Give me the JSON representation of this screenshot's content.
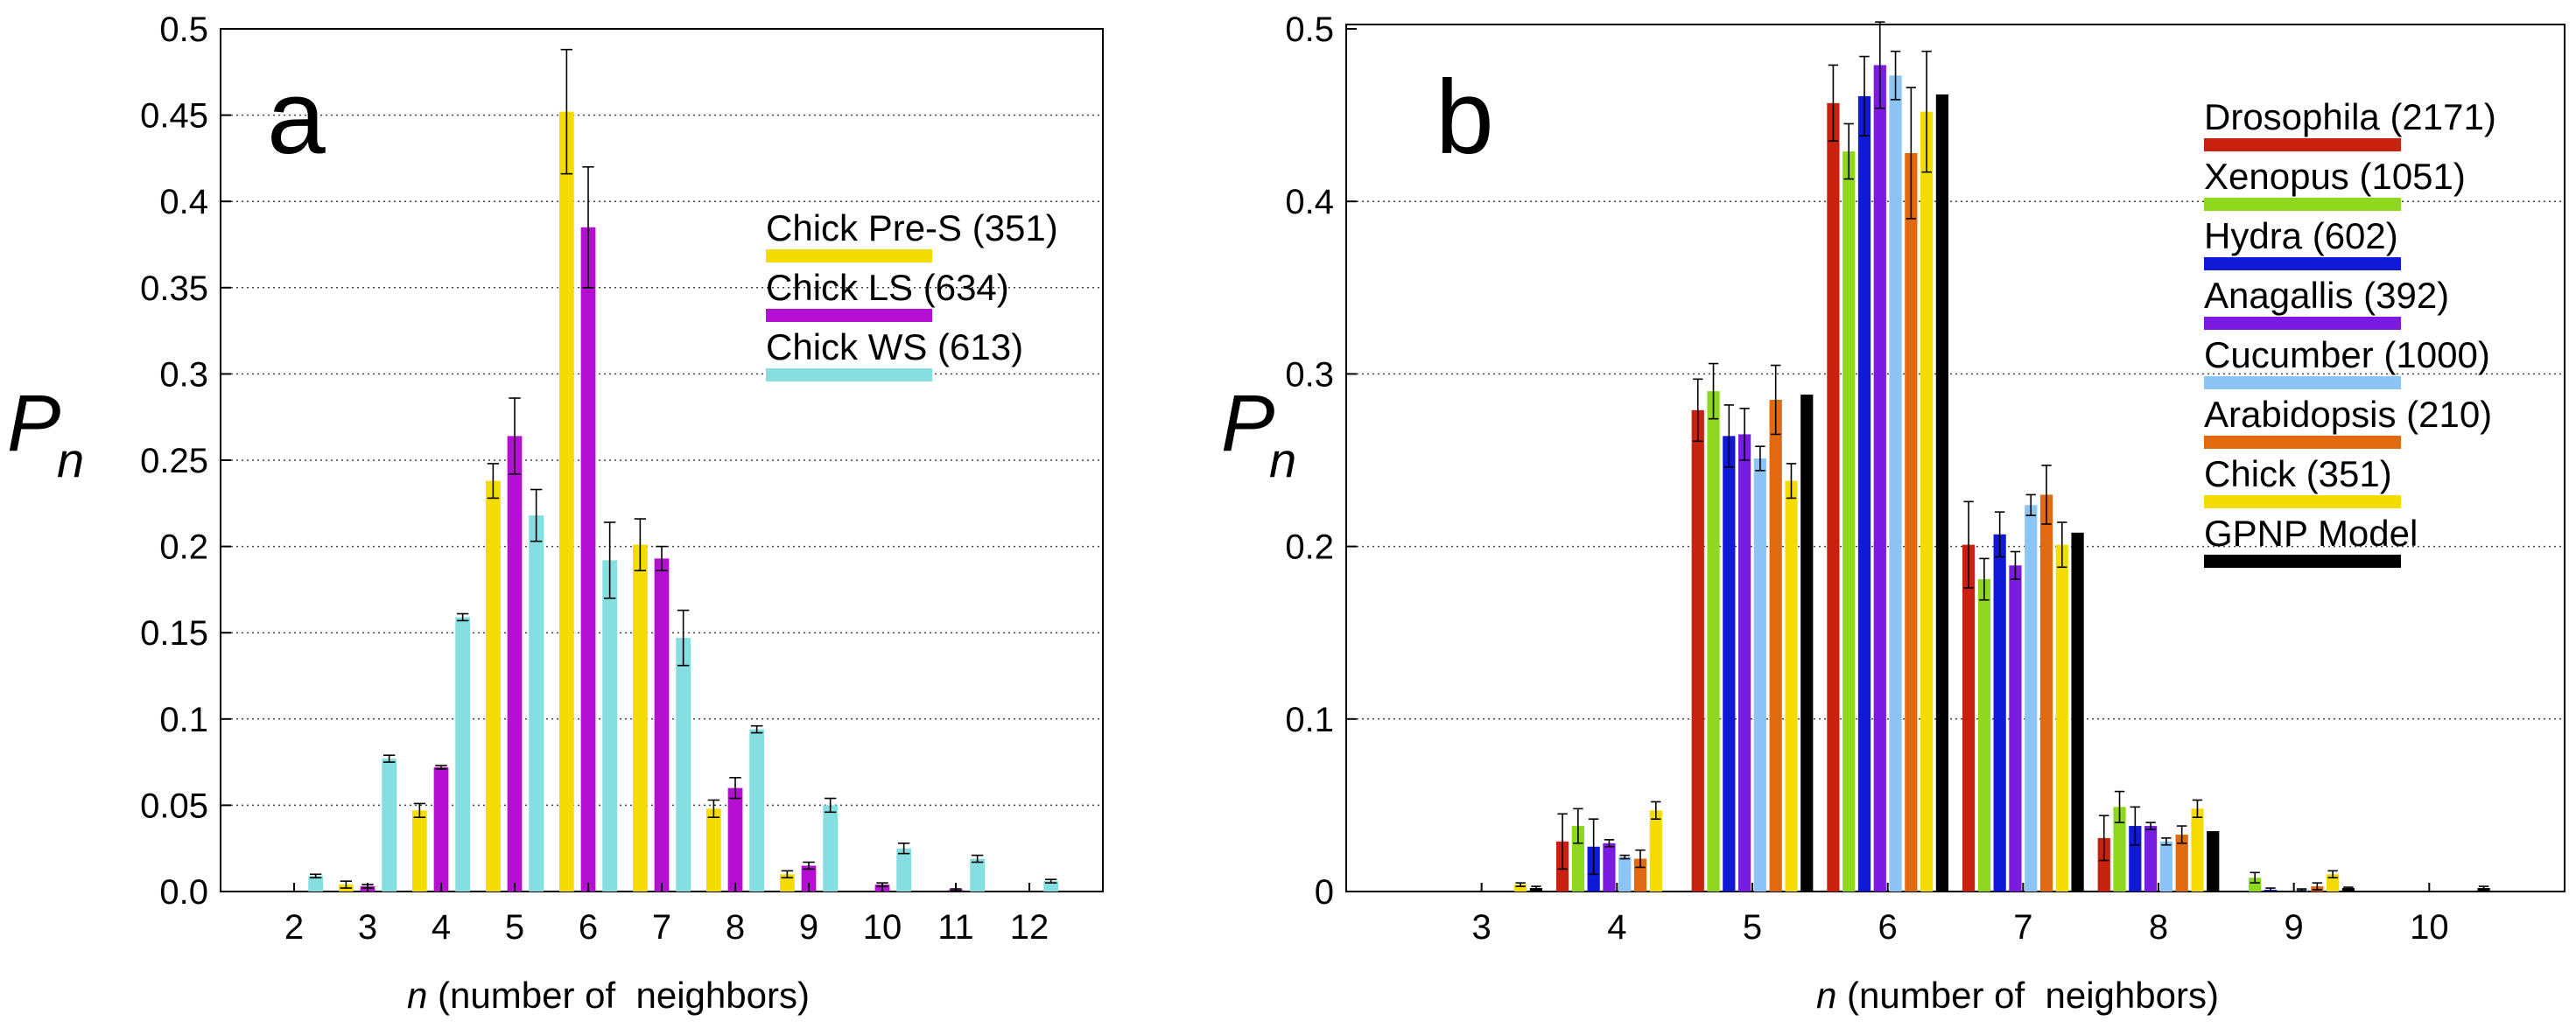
{
  "chart_data": [
    {
      "type": "bar",
      "panel_label": "a",
      "categories": [
        "2",
        "3",
        "4",
        "5",
        "6",
        "7",
        "8",
        "9",
        "10",
        "11",
        "12"
      ],
      "xlabel_var": "n",
      "xlabel_rest": " (number of  neighbors)",
      "ylabel_main": "P",
      "ylabel_sub": "n",
      "ylim": [
        0,
        0.5
      ],
      "yticks": [
        "0.0",
        "0.05",
        "0.1",
        "0.15",
        "0.2",
        "0.25",
        "0.3",
        "0.35",
        "0.4",
        "0.45",
        "0.5"
      ],
      "grid": "horizontal dotted",
      "legend_position": "top-right",
      "series": [
        {
          "name": "Chick Pre-S (351)",
          "color": "#f5dc00",
          "values": [
            0,
            0.004,
            0.047,
            0.238,
            0.452,
            0.201,
            0.048,
            0.01,
            0,
            0,
            0
          ],
          "errors": [
            0,
            0.002,
            0.004,
            0.01,
            0.036,
            0.015,
            0.005,
            0.002,
            0,
            0,
            0
          ]
        },
        {
          "name": "Chick LS (634)",
          "color": "#b40fd2",
          "values": [
            0,
            0.003,
            0.072,
            0.264,
            0.385,
            0.193,
            0.06,
            0.015,
            0.004,
            0.001,
            0
          ],
          "errors": [
            0,
            0.001,
            0.001,
            0.022,
            0.035,
            0.007,
            0.006,
            0.002,
            0.001,
            0.0005,
            0
          ]
        },
        {
          "name": "Chick WS (613)",
          "color": "#86dee0",
          "values": [
            0.009,
            0.077,
            0.159,
            0.218,
            0.192,
            0.147,
            0.094,
            0.05,
            0.025,
            0.019,
            0.006
          ],
          "errors": [
            0.001,
            0.002,
            0.002,
            0.015,
            0.022,
            0.016,
            0.002,
            0.004,
            0.003,
            0.002,
            0.001
          ]
        }
      ]
    },
    {
      "type": "bar",
      "panel_label": "b",
      "categories": [
        "3",
        "4",
        "5",
        "6",
        "7",
        "8",
        "9",
        "10"
      ],
      "xlabel_var": "n",
      "xlabel_rest": " (number of  neighbors)",
      "ylabel_main": "P",
      "ylabel_sub": "n",
      "ylim": [
        0,
        0.5
      ],
      "yticks": [
        "0",
        "0.1",
        "0.2",
        "0.3",
        "0.4",
        "0.5"
      ],
      "grid": "horizontal dotted",
      "legend_position": "top-right",
      "series": [
        {
          "name": "Drosophila (2171)",
          "color": "#c8210f",
          "values": [
            0,
            0.029,
            0.279,
            0.457,
            0.201,
            0.031,
            0,
            0
          ],
          "errors": [
            0,
            0.016,
            0.018,
            0.022,
            0.025,
            0.013,
            0,
            0
          ]
        },
        {
          "name": "Xenopus (1051)",
          "color": "#8ed81d",
          "values": [
            0,
            0.038,
            0.29,
            0.429,
            0.181,
            0.049,
            0.008,
            0
          ],
          "errors": [
            0,
            0.01,
            0.016,
            0.016,
            0.012,
            0.009,
            0.003,
            0
          ]
        },
        {
          "name": "Hydra (602)",
          "color": "#0f19d6",
          "values": [
            0,
            0.026,
            0.264,
            0.461,
            0.207,
            0.038,
            0.001,
            0
          ],
          "errors": [
            0,
            0.016,
            0.018,
            0.023,
            0.013,
            0.011,
            0.001,
            0
          ]
        },
        {
          "name": "Anagallis (392)",
          "color": "#7b1ae0",
          "values": [
            0,
            0.028,
            0.265,
            0.479,
            0.189,
            0.038,
            0,
            0
          ],
          "errors": [
            0,
            0.002,
            0.015,
            0.025,
            0.008,
            0.002,
            0,
            0
          ]
        },
        {
          "name": "Cucumber (1000)",
          "color": "#8dc4f6",
          "values": [
            0,
            0.02,
            0.251,
            0.473,
            0.224,
            0.029,
            0.001,
            0
          ],
          "errors": [
            0,
            0.001,
            0.007,
            0.014,
            0.006,
            0.002,
            0.0005,
            0
          ]
        },
        {
          "name": "Arabidopsis (210)",
          "color": "#e1690f",
          "values": [
            0,
            0.019,
            0.285,
            0.428,
            0.23,
            0.033,
            0.003,
            0
          ],
          "errors": [
            0,
            0.005,
            0.02,
            0.038,
            0.017,
            0.005,
            0.002,
            0
          ]
        },
        {
          "name": "Chick (351)",
          "color": "#f5dc00",
          "values": [
            0.004,
            0.047,
            0.238,
            0.452,
            0.201,
            0.048,
            0.01,
            0
          ],
          "errors": [
            0.001,
            0.005,
            0.01,
            0.035,
            0.013,
            0.005,
            0.002,
            0
          ]
        },
        {
          "name": "GPNP Model",
          "color": "#000000",
          "values": [
            0.002,
            0,
            0.288,
            0.462,
            0.208,
            0.035,
            0.002,
            0.002
          ],
          "errors": [
            0.001,
            0,
            0,
            0,
            0,
            0,
            0.0005,
            0.001
          ]
        }
      ]
    }
  ]
}
